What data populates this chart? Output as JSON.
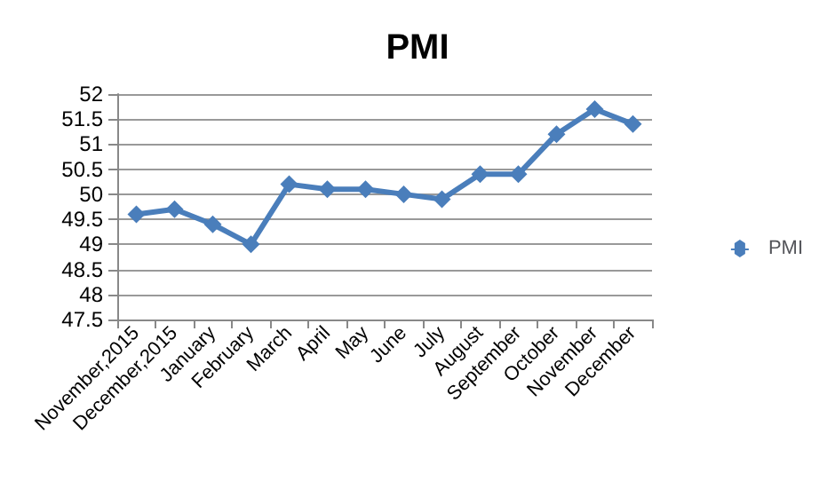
{
  "chart_data": {
    "type": "line",
    "title": "PMI",
    "categories": [
      "November,2015",
      "December,2015",
      "January",
      "February",
      "March",
      "April",
      "May",
      "June",
      "July",
      "August",
      "September",
      "October",
      "November",
      "December"
    ],
    "series": [
      {
        "name": "PMI",
        "color": "#4a7ebb",
        "values": [
          49.6,
          49.7,
          49.4,
          49.0,
          50.2,
          50.1,
          50.1,
          50.0,
          49.9,
          50.4,
          50.4,
          51.2,
          51.7,
          51.4
        ]
      }
    ],
    "ylim": [
      47.5,
      52
    ],
    "yticks": [
      47.5,
      48,
      48.5,
      49,
      49.5,
      50,
      50.5,
      51,
      51.5,
      52
    ],
    "grid": "y",
    "legend": "right",
    "marker": "diamond",
    "line_style": "solid"
  }
}
